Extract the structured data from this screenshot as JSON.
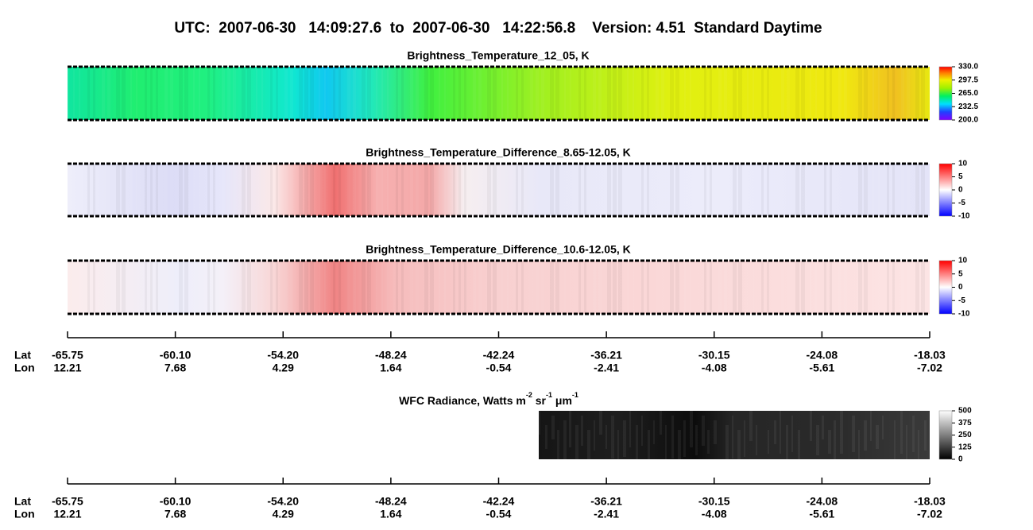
{
  "header": {
    "title": "UTC:  2007-06-30   14:09:27.6  to  2007-06-30   14:22:56.8    Version: 4.51  Standard Daytime"
  },
  "panels": [
    {
      "title": "Brightness_Temperature_12_05, K",
      "colorbar": [
        "330.0",
        "297.5",
        "265.0",
        "232.5",
        "200.0"
      ]
    },
    {
      "title": "Brightness_Temperature_Difference_8.65-12.05, K",
      "colorbar": [
        "10",
        "5",
        "0",
        "-5",
        "-10"
      ]
    },
    {
      "title": "Brightness_Temperature_Difference_10.6-12.05, K",
      "colorbar": [
        "10",
        "5",
        "0",
        "-5",
        "-10"
      ]
    }
  ],
  "axis": {
    "lat_label": "Lat",
    "lon_label": "Lon",
    "lat": [
      "-65.75",
      "-60.10",
      "-54.20",
      "-48.24",
      "-42.24",
      "-36.21",
      "-30.15",
      "-24.08",
      "-18.03"
    ],
    "lon": [
      "12.21",
      "7.68",
      "4.29",
      "1.64",
      "-0.54",
      "-2.41",
      "-4.08",
      "-5.61",
      "-7.02"
    ]
  },
  "wfc_panel": {
    "title": [
      "WFC Radiance, Watts m",
      "-2",
      " sr",
      "-1",
      " μm",
      "-1"
    ],
    "colorbar": [
      "500",
      "375",
      "250",
      "125",
      "0"
    ]
  },
  "axis_2": {
    "lat_label": "Lat",
    "lon_label": "Lon",
    "lat": [
      "-65.75",
      "-60.10",
      "-54.20",
      "-48.24",
      "-42.24",
      "-36.21",
      "-30.15",
      "-24.08",
      "-18.03"
    ],
    "lon": [
      "12.21",
      "7.68",
      "4.29",
      "1.64",
      "-0.54",
      "-2.41",
      "-4.08",
      "-5.61",
      "-7.02"
    ]
  }
}
